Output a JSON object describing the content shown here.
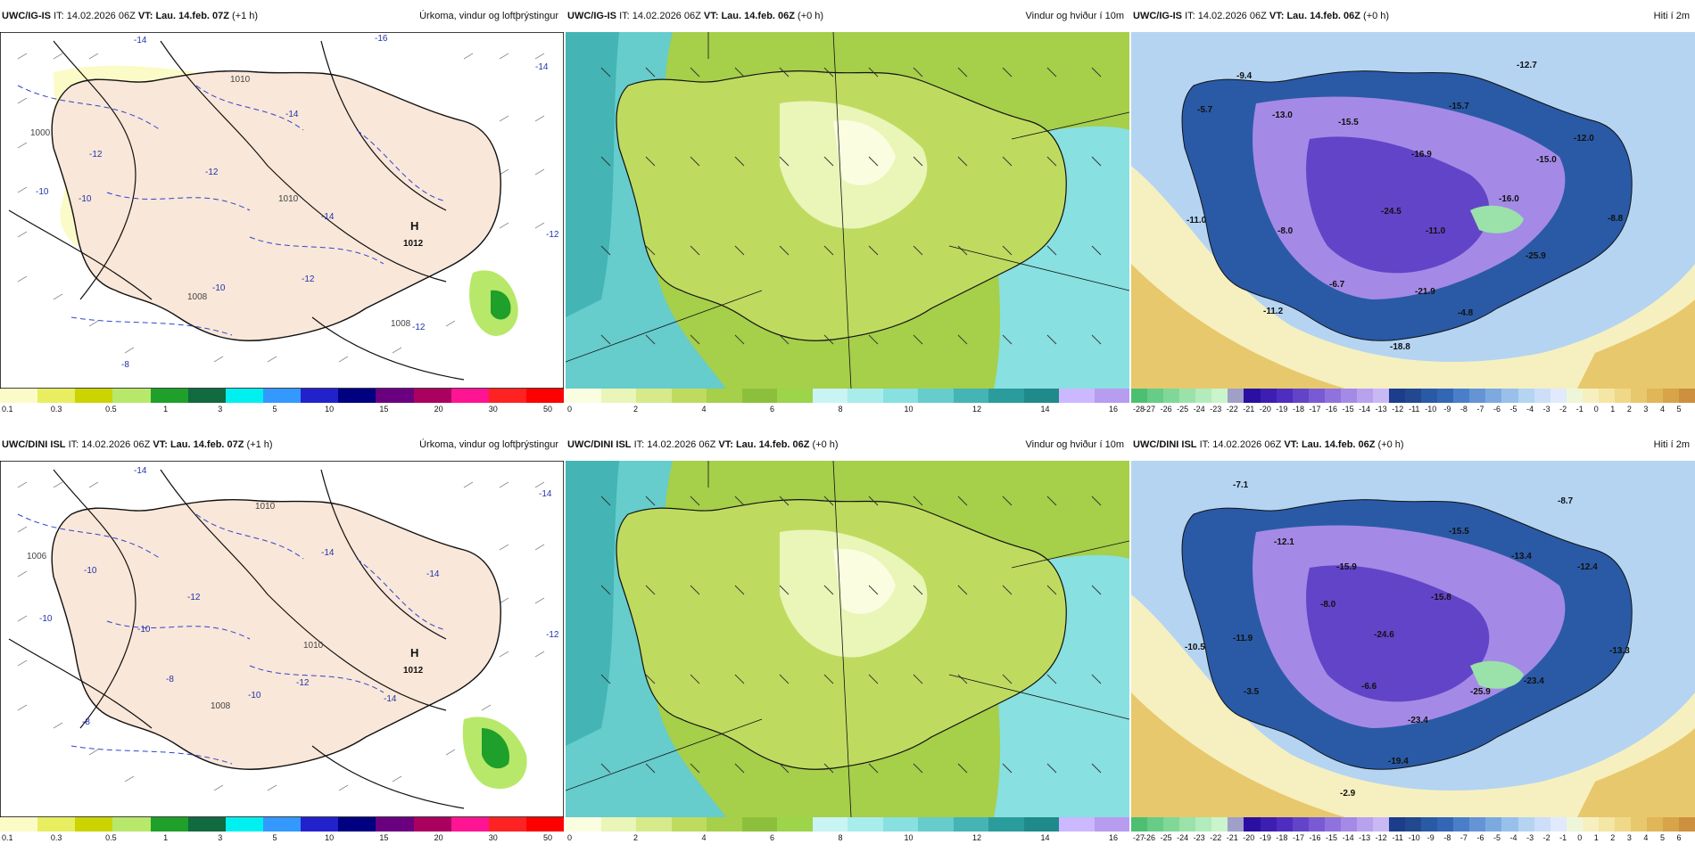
{
  "rows": [
    {
      "panels": [
        {
          "kind": "precip",
          "model": "UWC/IG-IS",
          "it_label": "IT:",
          "it": "14.02.2026 06Z",
          "vt_label": "VT:",
          "vt": "Lau. 14.feb. 07Z",
          "lead": "(+1 h)",
          "title": "Úrkoma, vindur og loftþrýstingur",
          "map_labels": [
            "-14",
            "-16",
            "-14",
            "-14",
            "-12",
            "-10",
            "-10",
            "-12",
            "-14",
            "-12",
            "-10",
            "-8",
            "-12",
            "-12",
            "1010",
            "1010",
            "1008",
            "1008",
            "1000",
            "1012",
            "H"
          ],
          "colorbar": {
            "colors": [
              "#fbfbc8",
              "#e8ee60",
              "#cbd400",
              "#b8e86a",
              "#1fa02a",
              "#116a40",
              "#00f0f0",
              "#3399ff",
              "#2222cc",
              "#000080",
              "#6a0080",
              "#aa0060",
              "#ff1493",
              "#ff2222",
              "#ff0000"
            ],
            "labels": [
              "0.1",
              "0.3",
              "0.5",
              "1",
              "3",
              "5",
              "10",
              "15",
              "20",
              "30",
              "50"
            ]
          }
        },
        {
          "kind": "wind",
          "model": "UWC/IG-IS",
          "it_label": "IT:",
          "it": "14.02.2026 06Z",
          "vt_label": "VT:",
          "vt": "Lau. 14.feb. 06Z",
          "lead": "(+0 h)",
          "title": "Vindur og hviður í 10m",
          "colorbar": {
            "colors": [
              "#fafde0",
              "#eaf5b8",
              "#d6ea8a",
              "#bedb60",
              "#a6cf4a",
              "#8cc03c",
              "#9cd44a",
              "#c8f4f4",
              "#a8ecec",
              "#88e0e0",
              "#66cccc",
              "#44b4b4",
              "#2a9c9c",
              "#1f8a8a",
              "#cbb8ff",
              "#b89cf0"
            ],
            "labels": [
              "0",
              "2",
              "4",
              "6",
              "8",
              "10",
              "12",
              "14",
              "16"
            ]
          }
        },
        {
          "kind": "temp",
          "model": "UWC/IG-IS",
          "it_label": "IT:",
          "it": "14.02.2026 06Z",
          "vt_label": "VT:",
          "vt": "Lau. 14.feb. 06Z",
          "lead": "(+0 h)",
          "title": "Hiti í 2m",
          "map_labels": [
            "-9.4",
            "-12.7",
            "-5.7",
            "-13.0",
            "-15.5",
            "-15.7",
            "-12.0",
            "-16.9",
            "-15.0",
            "-16.0",
            "-24.5",
            "-11.0",
            "-8.0",
            "-11.0",
            "-25.9",
            "-6.7",
            "-21.9",
            "-11.2",
            "-4.8",
            "-18.8",
            "-8.8"
          ],
          "colorbar": {
            "colors": [
              "#4cc070",
              "#66cc88",
              "#80d898",
              "#9ae2aa",
              "#b2ecbc",
              "#caf4cc",
              "#9f9fc8",
              "#2a0fa0",
              "#3c1eb0",
              "#4f2dbf",
              "#6244c8",
              "#7a5ad4",
              "#8f72de",
              "#a48ae6",
              "#b8a2ee",
              "#c8b8f4",
              "#1c3c8c",
              "#22488f",
              "#2a5aa6",
              "#3366b5",
              "#4a7ec8",
              "#6494d6",
              "#7caae0",
              "#98c0ea",
              "#b4d4f2",
              "#ccdef8",
              "#e0eafc",
              "#eef6da",
              "#f6f0c0",
              "#f4e6a4",
              "#efd888",
              "#e8c86c",
              "#e0b658",
              "#d8a448",
              "#cc903e"
            ],
            "labels": [
              "-28",
              "-27",
              "-26",
              "-25",
              "-24",
              "-23",
              "-22",
              "-21",
              "-20",
              "-19",
              "-18",
              "-17",
              "-16",
              "-15",
              "-14",
              "-13",
              "-12",
              "-11",
              "-10",
              "-9",
              "-8",
              "-7",
              "-6",
              "-5",
              "-4",
              "-3",
              "-2",
              "-1",
              "0",
              "1",
              "2",
              "3",
              "4",
              "5"
            ]
          }
        }
      ]
    },
    {
      "panels": [
        {
          "kind": "precip",
          "model": "UWC/DINI ISL",
          "it_label": "IT:",
          "it": "14.02.2026 06Z",
          "vt_label": "VT:",
          "vt": "Lau. 14.feb. 07Z",
          "lead": "(+1 h)",
          "title": "Úrkoma, vindur og loftþrýstingur",
          "map_labels": [
            "-14",
            "-14",
            "-14",
            "-14",
            "-12",
            "-10",
            "-10",
            "-12",
            "-10",
            "-8",
            "-8",
            "-10",
            "-12",
            "-14",
            "1010",
            "1010",
            "1008",
            "1006",
            "1012",
            "H"
          ],
          "colorbar": {
            "colors": [
              "#fbfbc8",
              "#e8ee60",
              "#cbd400",
              "#b8e86a",
              "#1fa02a",
              "#116a40",
              "#00f0f0",
              "#3399ff",
              "#2222cc",
              "#000080",
              "#6a0080",
              "#aa0060",
              "#ff1493",
              "#ff2222",
              "#ff0000"
            ],
            "labels": [
              "0.1",
              "0.3",
              "0.5",
              "1",
              "3",
              "5",
              "10",
              "15",
              "20",
              "30",
              "50"
            ]
          }
        },
        {
          "kind": "wind",
          "model": "UWC/DINI ISL",
          "it_label": "IT:",
          "it": "14.02.2026 06Z",
          "vt_label": "VT:",
          "vt": "Lau. 14.feb. 06Z",
          "lead": "(+0 h)",
          "title": "Vindur og hviður í 10m",
          "colorbar": {
            "colors": [
              "#fafde0",
              "#eaf5b8",
              "#d6ea8a",
              "#bedb60",
              "#a6cf4a",
              "#8cc03c",
              "#9cd44a",
              "#c8f4f4",
              "#a8ecec",
              "#88e0e0",
              "#66cccc",
              "#44b4b4",
              "#2a9c9c",
              "#1f8a8a",
              "#cbb8ff",
              "#b89cf0"
            ],
            "labels": [
              "0",
              "2",
              "4",
              "6",
              "8",
              "10",
              "12",
              "14",
              "16"
            ]
          }
        },
        {
          "kind": "temp",
          "model": "UWC/DINI ISL",
          "it_label": "IT:",
          "it": "14.02.2026 06Z",
          "vt_label": "VT:",
          "vt": "Lau. 14.feb. 06Z",
          "lead": "(+0 h)",
          "title": "Hiti í 2m",
          "map_labels": [
            "-7.1",
            "-8.7",
            "-12.1",
            "-15.5",
            "-15.9",
            "-13.4",
            "-12.4",
            "-8.0",
            "-15.8",
            "-10.5",
            "-11.9",
            "-24.6",
            "-13.3",
            "-3.5",
            "-6.6",
            "-25.9",
            "-23.4",
            "-23.4",
            "-19.4",
            "-2.9"
          ],
          "colorbar": {
            "colors": [
              "#4cc070",
              "#66cc88",
              "#80d898",
              "#9ae2aa",
              "#b2ecbc",
              "#caf4cc",
              "#9f9fc8",
              "#2a0fa0",
              "#3c1eb0",
              "#4f2dbf",
              "#6244c8",
              "#7a5ad4",
              "#8f72de",
              "#a48ae6",
              "#b8a2ee",
              "#c8b8f4",
              "#1c3c8c",
              "#22488f",
              "#2a5aa6",
              "#3366b5",
              "#4a7ec8",
              "#6494d6",
              "#7caae0",
              "#98c0ea",
              "#b4d4f2",
              "#ccdef8",
              "#e0eafc",
              "#eef6da",
              "#f6f0c0",
              "#f4e6a4",
              "#efd888",
              "#e8c86c",
              "#e0b658",
              "#d8a448",
              "#cc903e"
            ],
            "labels": [
              "-27",
              "-26",
              "-25",
              "-24",
              "-23",
              "-22",
              "-21",
              "-20",
              "-19",
              "-18",
              "-17",
              "-16",
              "-15",
              "-14",
              "-13",
              "-12",
              "-11",
              "-10",
              "-9",
              "-8",
              "-7",
              "-6",
              "-5",
              "-4",
              "-3",
              "-2",
              "-1",
              "0",
              "1",
              "2",
              "3",
              "4",
              "5",
              "6"
            ]
          }
        }
      ]
    }
  ]
}
